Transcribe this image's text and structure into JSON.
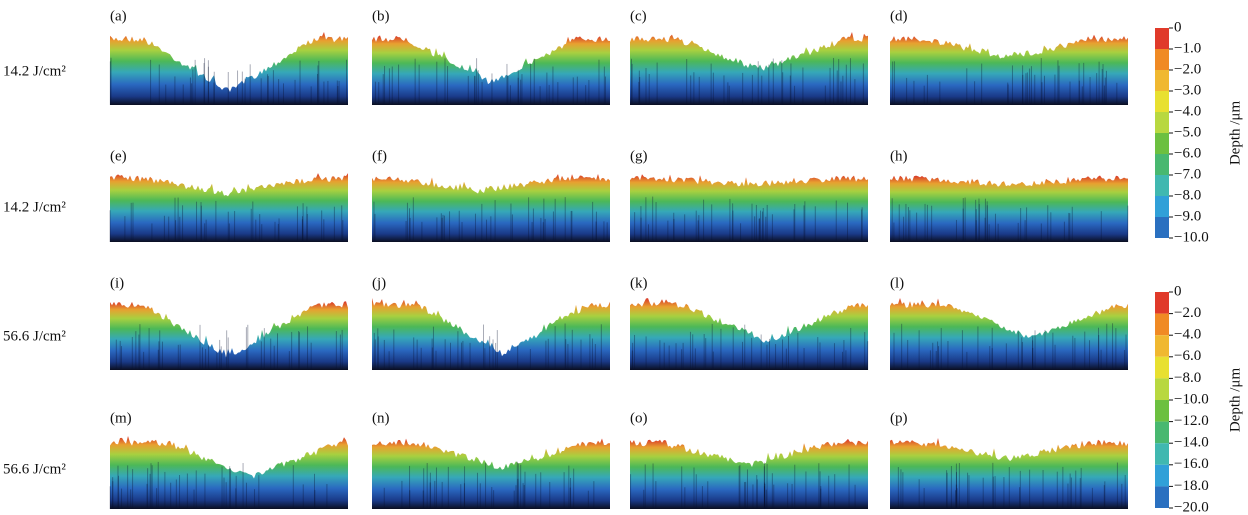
{
  "panels": [
    {
      "label": "(a)"
    },
    {
      "label": "(b)"
    },
    {
      "label": "(c)"
    },
    {
      "label": "(d)"
    },
    {
      "label": "(e)"
    },
    {
      "label": "(f)"
    },
    {
      "label": "(g)"
    },
    {
      "label": "(h)"
    },
    {
      "label": "(i)"
    },
    {
      "label": "(j)"
    },
    {
      "label": "(k)"
    },
    {
      "label": "(l)"
    },
    {
      "label": "(m)"
    },
    {
      "label": "(n)"
    },
    {
      "label": "(o)"
    },
    {
      "label": "(p)"
    }
  ],
  "row_labels": [
    "14.2 J/cm²",
    "14.2 J/cm²",
    "56.6 J/cm²",
    "56.6 J/cm²"
  ],
  "colorbars": [
    {
      "title": "Depth /μm",
      "ticks": [
        "0",
        "−1.0",
        "−2.0",
        "−3.0",
        "−4.0",
        "−5.0",
        "−6.0",
        "−7.0",
        "−8.0",
        "−9.0",
        "−10.0"
      ]
    },
    {
      "title": "Depth /μm",
      "ticks": [
        "0",
        "−2.0",
        "−4.0",
        "−6.0",
        "−8.0",
        "−10.0",
        "−12.0",
        "−14.0",
        "−16.0",
        "−18.0",
        "−20.0"
      ]
    }
  ]
}
